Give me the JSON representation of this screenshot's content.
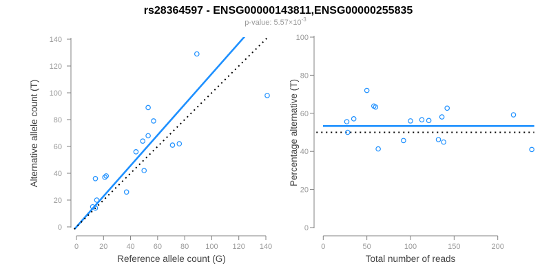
{
  "title": "rs28364597 - ENSG00000143811,ENSG00000255835",
  "subtitle": {
    "text": "p-value: 5.57×10",
    "exponent": "-3"
  },
  "colors": {
    "accent_blue": "#1E90FF",
    "identity_black": "#000000",
    "axis_gray": "#808080",
    "tick_label_gray": "#999999",
    "axis_title_gray": "#404040"
  },
  "chart_data": [
    {
      "type": "scatter",
      "xlabel": "Reference allele count (G)",
      "ylabel": "Alternative allele count (T)",
      "xlim": [
        0,
        145
      ],
      "ylim": [
        0,
        145
      ],
      "xticks": [
        0,
        20,
        40,
        60,
        80,
        100,
        120,
        140
      ],
      "yticks": [
        0,
        20,
        40,
        60,
        80,
        100,
        120,
        140
      ],
      "grid": false,
      "legend": false,
      "points": [
        [
          12,
          15
        ],
        [
          14,
          14
        ],
        [
          14,
          36
        ],
        [
          15,
          20
        ],
        [
          21,
          37
        ],
        [
          22,
          38
        ],
        [
          37,
          26
        ],
        [
          44,
          56
        ],
        [
          49,
          64
        ],
        [
          50,
          42
        ],
        [
          53,
          68
        ],
        [
          53,
          89
        ],
        [
          57,
          79
        ],
        [
          71,
          61
        ],
        [
          76,
          62
        ],
        [
          89,
          129
        ],
        [
          141,
          98
        ]
      ],
      "lines": [
        {
          "name": "fit-line",
          "style": "solid",
          "color": "#1E90FF",
          "slope": 1.142,
          "intercept": 0
        },
        {
          "name": "identity-line",
          "style": "dotted",
          "color": "#000000",
          "slope": 1,
          "intercept": 0
        }
      ]
    },
    {
      "type": "scatter",
      "xlabel": "Total number of reads",
      "ylabel": "Percentage alternative (T)",
      "xlim": [
        0,
        245
      ],
      "ylim": [
        0,
        100
      ],
      "xticks": [
        0,
        50,
        100,
        150,
        200
      ],
      "yticks": [
        0,
        20,
        40,
        60,
        80,
        100
      ],
      "grid": false,
      "legend": false,
      "points": [
        [
          27,
          55.6
        ],
        [
          28,
          50
        ],
        [
          50,
          72
        ],
        [
          35,
          57.1
        ],
        [
          58,
          63.8
        ],
        [
          60,
          63.3
        ],
        [
          63,
          41.3
        ],
        [
          100,
          56
        ],
        [
          113,
          56.6
        ],
        [
          92,
          45.7
        ],
        [
          121,
          56.2
        ],
        [
          142,
          62.7
        ],
        [
          136,
          58.1
        ],
        [
          132,
          46.2
        ],
        [
          138,
          44.9
        ],
        [
          218,
          59.2
        ],
        [
          239,
          41
        ]
      ],
      "lines": [
        {
          "name": "mean-line",
          "style": "solid",
          "color": "#1E90FF",
          "y": 53.3
        },
        {
          "name": "reference-line",
          "style": "dotted",
          "color": "#000000",
          "y": 50
        }
      ]
    }
  ]
}
